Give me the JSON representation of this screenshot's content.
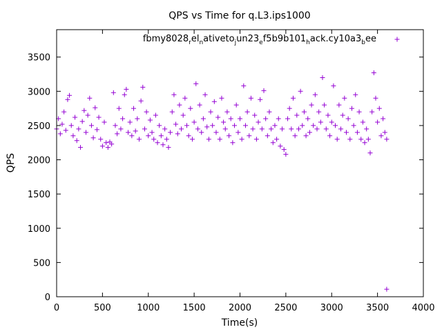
{
  "chart_data": {
    "type": "scatter",
    "title": "QPS vs Time for q.L3.ips1000",
    "xlabel": "Time(s)",
    "ylabel": "QPS",
    "xlim": [
      0,
      4000
    ],
    "ylim": [
      0,
      3900
    ],
    "x_ticks": [
      0,
      500,
      1000,
      1500,
      2000,
      2500,
      3000,
      3500,
      4000
    ],
    "y_ticks": [
      0,
      500,
      1000,
      1500,
      2000,
      2500,
      3000,
      3500
    ],
    "grid": false,
    "legend_position": "top-right",
    "marker": "+",
    "series": [
      {
        "name": "fbmy8028_rel_native_to_jun23_ef5b9b101_hack.cy10a3_bee",
        "legend_label": {
          "parts": [
            "fbmy8028",
            "r",
            "el",
            "n",
            "ative",
            "t",
            "o",
            "j",
            "un23",
            "e",
            "f5b9b101",
            "h",
            "ack.cy10a3",
            "b",
            "ee"
          ],
          "subscript_flags": [
            false,
            true,
            false,
            true,
            false,
            false,
            false,
            true,
            false,
            true,
            false,
            true,
            false,
            true,
            false
          ]
        },
        "color": "#9400d3",
        "points": [
          [
            0,
            2450
          ],
          [
            20,
            2600
          ],
          [
            40,
            2380
          ],
          [
            60,
            2520
          ],
          [
            80,
            2700
          ],
          [
            100,
            2430
          ],
          [
            120,
            2880
          ],
          [
            140,
            2940
          ],
          [
            160,
            2500
          ],
          [
            180,
            2350
          ],
          [
            200,
            2620
          ],
          [
            220,
            2280
          ],
          [
            240,
            2450
          ],
          [
            260,
            2180
          ],
          [
            280,
            2560
          ],
          [
            300,
            2720
          ],
          [
            320,
            2400
          ],
          [
            340,
            2650
          ],
          [
            360,
            2900
          ],
          [
            380,
            2500
          ],
          [
            400,
            2320
          ],
          [
            420,
            2760
          ],
          [
            440,
            2440
          ],
          [
            460,
            2620
          ],
          [
            480,
            2300
          ],
          [
            500,
            2200
          ],
          [
            520,
            2550
          ],
          [
            540,
            2250
          ],
          [
            560,
            2180
          ],
          [
            580,
            2260
          ],
          [
            600,
            2230
          ],
          [
            620,
            2980
          ],
          [
            640,
            2500
          ],
          [
            660,
            2380
          ],
          [
            680,
            2750
          ],
          [
            700,
            2450
          ],
          [
            720,
            2600
          ],
          [
            740,
            2950
          ],
          [
            760,
            3030
          ],
          [
            780,
            2400
          ],
          [
            800,
            2550
          ],
          [
            820,
            2350
          ],
          [
            840,
            2750
          ],
          [
            860,
            2420
          ],
          [
            880,
            2600
          ],
          [
            900,
            2300
          ],
          [
            920,
            2860
          ],
          [
            940,
            3060
          ],
          [
            960,
            2450
          ],
          [
            980,
            2700
          ],
          [
            1000,
            2350
          ],
          [
            1020,
            2580
          ],
          [
            1040,
            2400
          ],
          [
            1060,
            2300
          ],
          [
            1080,
            2650
          ],
          [
            1100,
            2250
          ],
          [
            1120,
            2500
          ],
          [
            1140,
            2350
          ],
          [
            1160,
            2220
          ],
          [
            1180,
            2450
          ],
          [
            1200,
            2300
          ],
          [
            1220,
            2180
          ],
          [
            1240,
            2400
          ],
          [
            1260,
            2700
          ],
          [
            1280,
            2950
          ],
          [
            1300,
            2520
          ],
          [
            1320,
            2380
          ],
          [
            1340,
            2800
          ],
          [
            1360,
            2450
          ],
          [
            1380,
            2650
          ],
          [
            1400,
            2900
          ],
          [
            1420,
            2500
          ],
          [
            1440,
            2350
          ],
          [
            1460,
            2750
          ],
          [
            1480,
            2300
          ],
          [
            1500,
            2550
          ],
          [
            1520,
            3110
          ],
          [
            1540,
            2450
          ],
          [
            1560,
            2800
          ],
          [
            1580,
            2400
          ],
          [
            1600,
            2600
          ],
          [
            1620,
            2950
          ],
          [
            1640,
            2480
          ],
          [
            1660,
            2300
          ],
          [
            1680,
            2700
          ],
          [
            1700,
            2500
          ],
          [
            1720,
            2850
          ],
          [
            1740,
            2400
          ],
          [
            1760,
            2620
          ],
          [
            1780,
            2300
          ],
          [
            1800,
            2900
          ],
          [
            1820,
            2550
          ],
          [
            1840,
            2450
          ],
          [
            1860,
            2700
          ],
          [
            1880,
            2350
          ],
          [
            1900,
            2600
          ],
          [
            1920,
            2250
          ],
          [
            1940,
            2500
          ],
          [
            1960,
            2800
          ],
          [
            1980,
            2400
          ],
          [
            2000,
            2600
          ],
          [
            2020,
            2300
          ],
          [
            2040,
            3080
          ],
          [
            2060,
            2500
          ],
          [
            2080,
            2700
          ],
          [
            2100,
            2350
          ],
          [
            2120,
            2900
          ],
          [
            2140,
            2450
          ],
          [
            2160,
            2650
          ],
          [
            2180,
            2300
          ],
          [
            2200,
            2550
          ],
          [
            2220,
            2880
          ],
          [
            2240,
            2450
          ],
          [
            2260,
            3010
          ],
          [
            2280,
            2600
          ],
          [
            2300,
            2350
          ],
          [
            2320,
            2700
          ],
          [
            2340,
            2450
          ],
          [
            2360,
            2250
          ],
          [
            2380,
            2500
          ],
          [
            2400,
            2300
          ],
          [
            2420,
            2600
          ],
          [
            2440,
            2200
          ],
          [
            2460,
            2450
          ],
          [
            2480,
            2150
          ],
          [
            2500,
            2080
          ],
          [
            2520,
            2600
          ],
          [
            2540,
            2750
          ],
          [
            2560,
            2450
          ],
          [
            2580,
            2900
          ],
          [
            2600,
            2350
          ],
          [
            2620,
            2650
          ],
          [
            2640,
            2450
          ],
          [
            2660,
            3000
          ],
          [
            2680,
            2500
          ],
          [
            2700,
            2700
          ],
          [
            2720,
            2350
          ],
          [
            2740,
            2600
          ],
          [
            2760,
            2400
          ],
          [
            2780,
            2800
          ],
          [
            2800,
            2500
          ],
          [
            2820,
            2950
          ],
          [
            2840,
            2450
          ],
          [
            2860,
            2700
          ],
          [
            2880,
            2550
          ],
          [
            2900,
            3200
          ],
          [
            2920,
            2800
          ],
          [
            2940,
            2450
          ],
          [
            2960,
            2650
          ],
          [
            2980,
            2350
          ],
          [
            3000,
            2550
          ],
          [
            3020,
            3080
          ],
          [
            3040,
            2500
          ],
          [
            3060,
            2300
          ],
          [
            3080,
            2800
          ],
          [
            3100,
            2450
          ],
          [
            3120,
            2650
          ],
          [
            3140,
            2900
          ],
          [
            3160,
            2400
          ],
          [
            3180,
            2600
          ],
          [
            3200,
            2300
          ],
          [
            3220,
            2750
          ],
          [
            3240,
            2500
          ],
          [
            3260,
            2950
          ],
          [
            3280,
            2400
          ],
          [
            3300,
            2700
          ],
          [
            3320,
            2300
          ],
          [
            3340,
            2550
          ],
          [
            3360,
            2250
          ],
          [
            3380,
            2450
          ],
          [
            3400,
            2300
          ],
          [
            3420,
            2100
          ],
          [
            3440,
            2700
          ],
          [
            3460,
            3270
          ],
          [
            3480,
            2900
          ],
          [
            3500,
            2550
          ],
          [
            3520,
            2750
          ],
          [
            3540,
            2350
          ],
          [
            3560,
            2600
          ],
          [
            3580,
            2400
          ],
          [
            3600,
            2300
          ],
          [
            3600,
            110
          ]
        ]
      }
    ]
  }
}
